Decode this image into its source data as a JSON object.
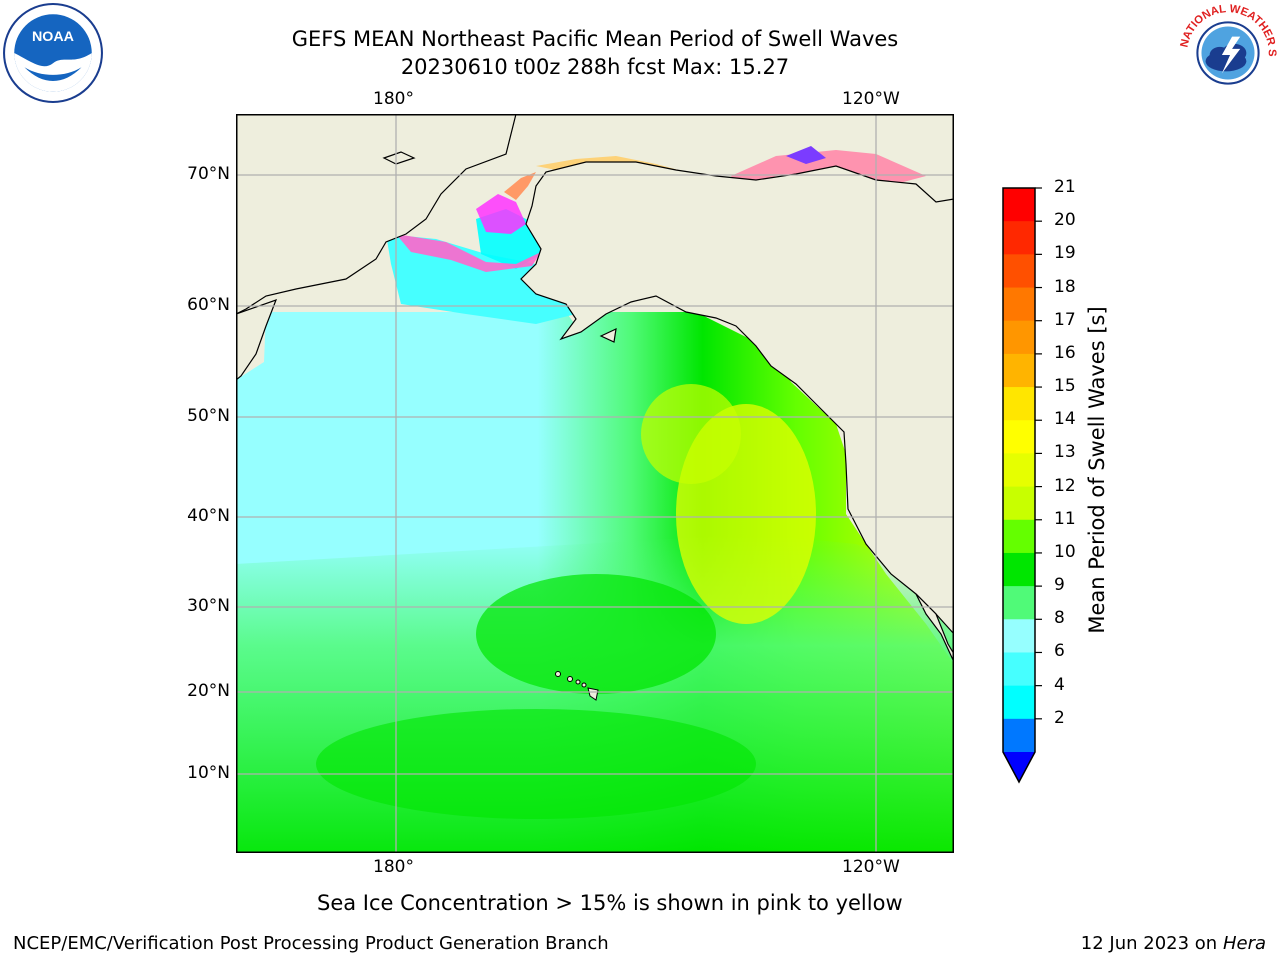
{
  "header": {
    "title_line1": "GEFS MEAN Northeast Pacific Mean Period of Swell Waves",
    "title_line2": "20230610 t00z 288h fcst   Max: 15.27"
  },
  "logos": {
    "left": {
      "name": "noaa-logo",
      "text": "NOAA"
    },
    "right": {
      "name": "nws-logo",
      "text": "NATIONAL WEATHER SERVICE"
    }
  },
  "map": {
    "lon_ticks_top": [
      "180°",
      "120°W"
    ],
    "lon_ticks_bottom": [
      "180°",
      "120°W"
    ],
    "lat_ticks": [
      "70°N",
      "60°N",
      "50°N",
      "40°N",
      "30°N",
      "20°N",
      "10°N"
    ],
    "colors": {
      "land": "#eeeedd",
      "grid": "#b0b0b0",
      "coast": "#000000"
    }
  },
  "colorbar": {
    "title": "Mean Period of Swell Waves [s]",
    "labels": [
      "21",
      "20",
      "19",
      "18",
      "17",
      "16",
      "15",
      "14",
      "13",
      "12",
      "11",
      "10",
      "9",
      "8",
      "6",
      "4",
      "2"
    ],
    "colors": [
      "#ff0000",
      "#ff2800",
      "#ff5000",
      "#ff7800",
      "#ff9600",
      "#ffb400",
      "#ffe600",
      "#ffff00",
      "#e6ff00",
      "#c8ff00",
      "#64ff00",
      "#00e600",
      "#50fa78",
      "#96ffff",
      "#46ffff",
      "#00ffff",
      "#0078ff"
    ],
    "under_color": "#0000ff"
  },
  "footnote": "Sea Ice Concentration > 15% is shown in pink to yellow",
  "footer": {
    "credit": "NCEP/EMC/Verification Post Processing Product Generation Branch",
    "date": "12 Jun 2023 on",
    "machine": "Hera"
  }
}
